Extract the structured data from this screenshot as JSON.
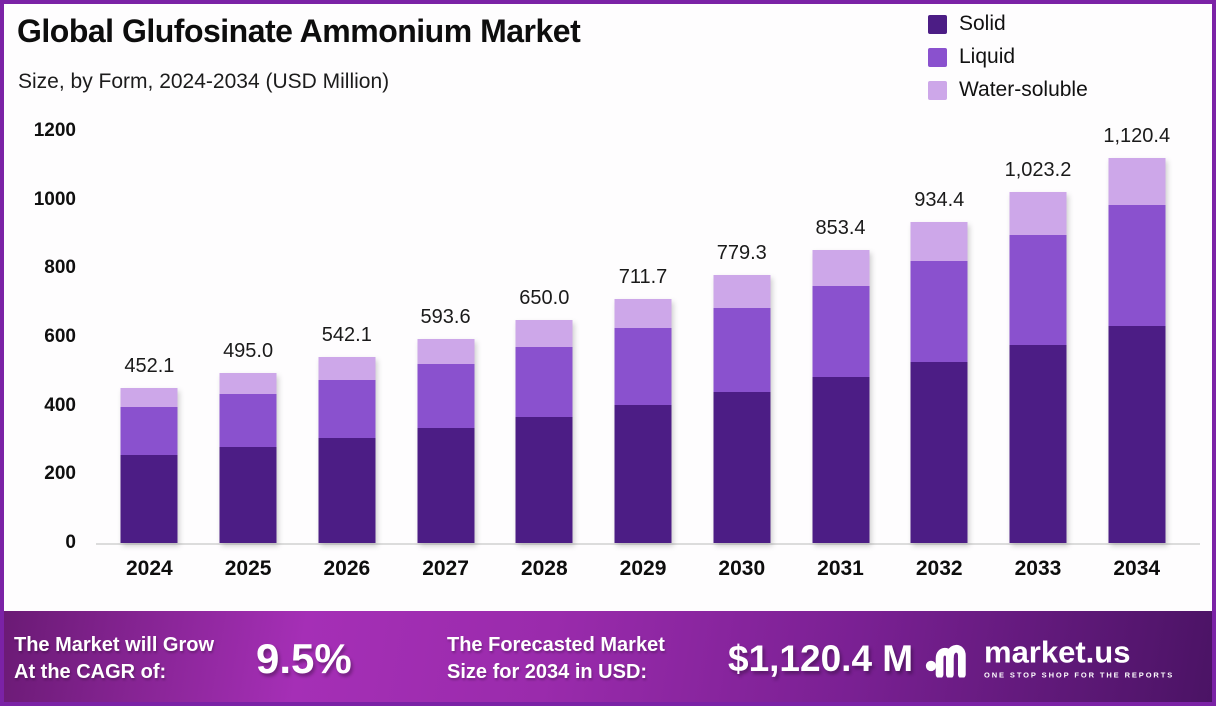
{
  "header": {
    "title": "Global Glufosinate Ammonium Market",
    "subtitle": "Size, by Form, 2024-2034 (USD Million)"
  },
  "chart_data": {
    "type": "bar",
    "stacked": true,
    "title": "Global Glufosinate Ammonium Market Size, by Form, 2024-2034 (USD Million)",
    "categories": [
      "2024",
      "2025",
      "2026",
      "2027",
      "2028",
      "2029",
      "2030",
      "2031",
      "2032",
      "2033",
      "2034"
    ],
    "series": [
      {
        "name": "Solid",
        "color": "#4c1d85",
        "values": [
          255.4,
          279.7,
          306.3,
          335.4,
          367.3,
          402.1,
          440.3,
          482.2,
          528.0,
          578.1,
          633.0
        ]
      },
      {
        "name": "Liquid",
        "color": "#8a51ce",
        "values": [
          141.5,
          154.9,
          169.7,
          185.8,
          203.5,
          222.8,
          243.9,
          267.1,
          292.5,
          320.3,
          350.7
        ]
      },
      {
        "name": "Water-soluble",
        "color": "#cda7e9",
        "values": [
          55.2,
          60.4,
          66.1,
          72.4,
          79.2,
          86.8,
          95.1,
          104.1,
          113.9,
          124.8,
          136.7
        ]
      }
    ],
    "totals": [
      452.1,
      495.0,
      542.1,
      593.6,
      650.0,
      711.7,
      779.3,
      853.4,
      934.4,
      1023.2,
      1120.4
    ],
    "total_labels": [
      "452.1",
      "495.0",
      "542.1",
      "593.6",
      "650.0",
      "711.7",
      "779.3",
      "853.4",
      "934.4",
      "1,023.2",
      "1,120.4"
    ],
    "xlabel": "",
    "ylabel": "",
    "ylim": [
      0,
      1200
    ],
    "yticks": [
      0,
      200,
      400,
      600,
      800,
      1000,
      1200
    ],
    "grid": false,
    "legend_position": "top-right"
  },
  "footer": {
    "cagr_label_line1": "The Market will Grow",
    "cagr_label_line2": "At the CAGR of:",
    "cagr_value": "9.5%",
    "forecast_label_line1": "The Forecasted Market",
    "forecast_label_line2": "Size for 2034 in USD:",
    "forecast_value": "$1,120.4 M",
    "brand_name": "market.us",
    "brand_tagline": "ONE STOP SHOP FOR THE REPORTS"
  },
  "colors": {
    "frame_border": "#7b22a6",
    "background": "#fefdfe",
    "baseline": "#dcdcdc",
    "banner_gradient": [
      "#6a1a74",
      "#a52fb6",
      "#4a1364"
    ],
    "text": "#0d0d0d"
  }
}
